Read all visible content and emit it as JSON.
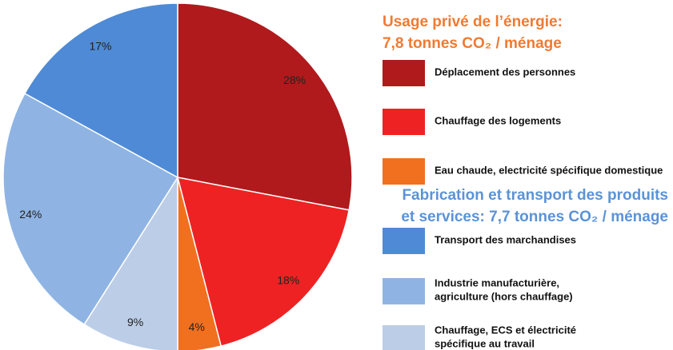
{
  "chart_data": {
    "type": "pie",
    "group_titles": [
      {
        "lines": [
          "Usage privé de l’énergie:",
          "7,8 tonnes CO₂ / ménage"
        ],
        "color": "#f07a32"
      },
      {
        "lines": [
          "Fabrication et transport des produits",
          "et services: 7,7 tonnes CO₂ / ménage"
        ],
        "color": "#5b93d6"
      }
    ],
    "categories": [
      "Déplacement des personnes",
      "Chauffage des logements",
      "Eau chaude, electricité spécifique domestique",
      "Chauffage, ECS et électricité\nspécifique au travail",
      "Industrie manufacturière,\nagriculture (hors chauffage)",
      "Transport des marchandises"
    ],
    "values": [
      28,
      18,
      4,
      9,
      24,
      17
    ],
    "value_labels": [
      "28%",
      "18%",
      "4%",
      "9%",
      "24%",
      "17%"
    ],
    "colors": [
      "#b01a1c",
      "#ee2223",
      "#f07020",
      "#bccde7",
      "#8fb4e3",
      "#4f8ad6"
    ],
    "legend_order": [
      0,
      1,
      2,
      5,
      4,
      3
    ],
    "group_of_legend_entry": [
      0,
      0,
      0,
      1,
      1,
      1
    ]
  }
}
